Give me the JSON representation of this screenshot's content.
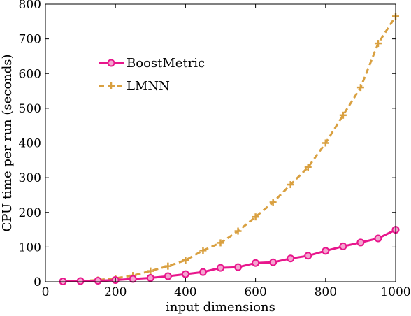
{
  "chart_data": {
    "type": "line",
    "title": "",
    "xlabel": "input dimensions",
    "ylabel": "CPU time per run (seconds)",
    "xlim": [
      0,
      1000
    ],
    "ylim": [
      0,
      800
    ],
    "xticks": [
      0,
      200,
      400,
      600,
      800,
      1000
    ],
    "yticks": [
      0,
      100,
      200,
      300,
      400,
      500,
      600,
      700,
      800
    ],
    "grid": false,
    "legend_position": "upper-left",
    "x": [
      50,
      100,
      150,
      200,
      250,
      300,
      350,
      400,
      450,
      500,
      550,
      600,
      650,
      700,
      750,
      800,
      850,
      900,
      950,
      1000
    ],
    "series": [
      {
        "name": "BoostMetric",
        "color": "#e8168c",
        "style": "solid",
        "marker": "circle",
        "values": [
          1,
          2,
          3,
          5,
          8,
          11,
          16,
          22,
          28,
          40,
          42,
          54,
          56,
          67,
          75,
          89,
          102,
          113,
          125,
          150
        ]
      },
      {
        "name": "LMNN",
        "color": "#d9a040",
        "style": "dashed",
        "marker": "plus",
        "values": [
          1,
          2,
          5,
          10,
          18,
          31,
          45,
          62,
          90,
          112,
          146,
          187,
          229,
          280,
          330,
          400,
          480,
          560,
          687,
          765
        ]
      }
    ]
  }
}
